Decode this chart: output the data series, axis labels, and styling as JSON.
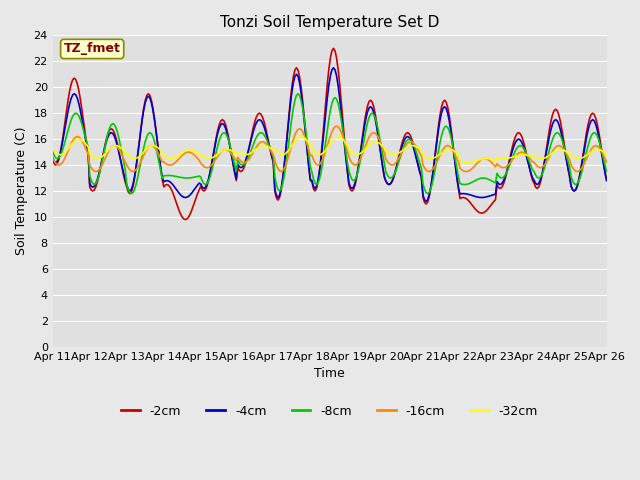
{
  "title": "Tonzi Soil Temperature Set D",
  "xlabel": "Time",
  "ylabel": "Soil Temperature (C)",
  "ylim": [
    0,
    24
  ],
  "yticks": [
    0,
    2,
    4,
    6,
    8,
    10,
    12,
    14,
    16,
    18,
    20,
    22,
    24
  ],
  "xtick_labels": [
    "Apr 11",
    "Apr 12",
    "Apr 13",
    "Apr 14",
    "Apr 15",
    "Apr 16",
    "Apr 17",
    "Apr 18",
    "Apr 19",
    "Apr 20",
    "Apr 21",
    "Apr 22",
    "Apr 23",
    "Apr 24",
    "Apr 25",
    "Apr 26"
  ],
  "legend_labels": [
    "-2cm",
    "-4cm",
    "-8cm",
    "-16cm",
    "-32cm"
  ],
  "legend_colors": [
    "#cc0000",
    "#0000cc",
    "#00cc00",
    "#ff8800",
    "#ffff00"
  ],
  "annotation_text": "TZ_fmet",
  "annotation_text_color": "#880000",
  "annotation_box_facecolor": "#ffffcc",
  "annotation_box_edgecolor": "#888800",
  "fig_facecolor": "#e8e8e8",
  "ax_facecolor": "#e0e0e0",
  "grid_color": "#ffffff",
  "title_fontsize": 11,
  "axis_label_fontsize": 9,
  "tick_fontsize": 8,
  "legend_fontsize": 9,
  "annotation_fontsize": 9,
  "linewidth": 1.2,
  "n_days": 15,
  "pts_per_day": 24,
  "day_peaks_d2cm": [
    20.7,
    16.8,
    19.5,
    9.8,
    17.5,
    18.0,
    21.5,
    23.0,
    19.0,
    16.5,
    19.0,
    10.3,
    16.5,
    18.3,
    18.0
  ],
  "day_troughs_d2cm": [
    14.0,
    12.0,
    11.8,
    12.5,
    12.0,
    13.5,
    11.3,
    12.0,
    12.0,
    12.5,
    11.0,
    11.5,
    12.2,
    12.2,
    12.0
  ],
  "day_peaks_d4cm": [
    19.5,
    16.5,
    19.3,
    11.5,
    17.2,
    17.5,
    21.0,
    21.5,
    18.5,
    16.2,
    18.5,
    11.5,
    16.0,
    17.5,
    17.5
  ],
  "day_troughs_d4cm": [
    14.2,
    12.3,
    12.0,
    12.8,
    12.2,
    13.8,
    11.5,
    12.2,
    12.2,
    12.5,
    11.2,
    11.8,
    12.5,
    12.5,
    12.0
  ],
  "day_peaks_d8cm": [
    18.0,
    17.2,
    16.5,
    13.0,
    16.5,
    16.5,
    19.5,
    19.2,
    18.0,
    16.0,
    17.0,
    13.0,
    15.5,
    16.5,
    16.5
  ],
  "day_troughs_d8cm": [
    14.5,
    12.5,
    11.8,
    13.2,
    12.5,
    14.0,
    12.0,
    12.5,
    12.8,
    13.0,
    11.8,
    12.5,
    13.0,
    13.0,
    12.5
  ],
  "day_peaks_d16cm": [
    16.2,
    15.5,
    15.5,
    15.0,
    15.2,
    15.8,
    16.8,
    17.0,
    16.5,
    15.8,
    15.5,
    14.5,
    15.0,
    15.5,
    15.5
  ],
  "day_troughs_d16cm": [
    14.0,
    13.5,
    13.5,
    14.0,
    13.8,
    14.2,
    13.5,
    14.0,
    14.0,
    14.0,
    13.5,
    13.5,
    13.8,
    13.8,
    13.5
  ],
  "day_peaks_d32cm": [
    16.0,
    15.5,
    15.5,
    15.2,
    15.2,
    15.5,
    16.2,
    16.2,
    15.8,
    15.5,
    15.2,
    14.5,
    14.8,
    15.2,
    15.2
  ],
  "day_troughs_d32cm": [
    14.8,
    14.5,
    14.5,
    14.5,
    14.5,
    14.8,
    14.8,
    14.8,
    14.8,
    14.8,
    14.5,
    14.2,
    14.5,
    14.5,
    14.5
  ]
}
